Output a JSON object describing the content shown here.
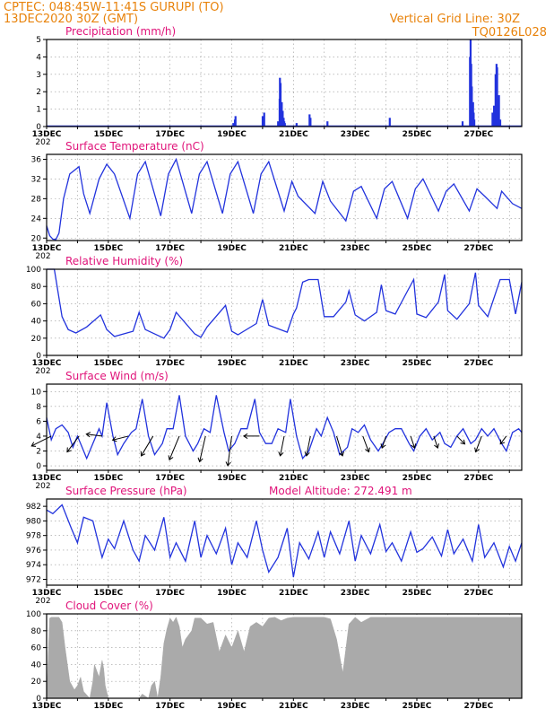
{
  "header": {
    "line1": "CPTEC:  048:45W-11:41S   GURUPI (TO)",
    "line2": "13DEC2020 30Z (GMT)",
    "grid_note": "Vertical Grid Line: 30Z",
    "code": "TQ0126L028"
  },
  "colors": {
    "header": "#e8820a",
    "title": "#e0147a",
    "series": "#2233dd",
    "cloud": "#aaaaaa",
    "arrow": "#000000"
  },
  "x_axis": {
    "labels": [
      "13DEC",
      "15DEC",
      "17DEC",
      "19DEC",
      "21DEC",
      "23DEC",
      "25DEC",
      "27DEC"
    ],
    "label_days": [
      0,
      2,
      4,
      6,
      8,
      10,
      12,
      14
    ],
    "year_stub": "202",
    "range_days": [
      0,
      15.4
    ]
  },
  "chart_data": [
    {
      "type": "bar",
      "title": "Precipitation (mm/h)",
      "ylim": [
        0,
        5
      ],
      "yticks": [
        0,
        1,
        2,
        3,
        4,
        5
      ],
      "x_days": [
        6.05,
        6.1,
        6.12,
        7.0,
        7.05,
        7.5,
        7.55,
        7.56,
        7.58,
        7.6,
        7.62,
        7.65,
        7.68,
        7.7,
        7.72,
        8.1,
        8.52,
        8.55,
        9.1,
        11.12,
        13.48,
        13.72,
        13.74,
        13.76,
        13.78,
        13.8,
        13.82,
        13.84,
        13.86,
        14.45,
        14.5,
        14.55,
        14.58,
        14.6,
        14.63,
        14.66,
        14.7
      ],
      "values": [
        0.2,
        0.4,
        0.6,
        0.6,
        0.8,
        0.3,
        1.6,
        2.8,
        2.5,
        1.2,
        1.4,
        0.9,
        0.5,
        0.3,
        0.2,
        0.2,
        0.7,
        0.5,
        0.3,
        0.5,
        0.3,
        4.0,
        5.0,
        3.6,
        2.3,
        1.2,
        1.4,
        0.8,
        0.4,
        0.8,
        1.2,
        3.0,
        3.6,
        3.4,
        1.6,
        1.8,
        0.4
      ]
    },
    {
      "type": "line",
      "title": "Surface Temperature (nC)",
      "ylim": [
        19.5,
        37
      ],
      "yticks": [
        20,
        24,
        28,
        32,
        36
      ],
      "x_days": [
        0,
        0.1,
        0.2,
        0.3,
        0.4,
        0.55,
        0.75,
        1.05,
        1.2,
        1.4,
        1.7,
        1.95,
        2.2,
        2.7,
        2.95,
        3.2,
        3.7,
        3.95,
        4.2,
        4.7,
        4.95,
        5.2,
        5.7,
        5.95,
        6.2,
        6.7,
        6.95,
        7.2,
        7.7,
        7.95,
        8.15,
        8.7,
        8.95,
        9.2,
        9.7,
        9.95,
        10.2,
        10.7,
        10.95,
        11.2,
        11.7,
        11.95,
        12.2,
        12.7,
        12.95,
        13.2,
        13.7,
        13.95,
        14.2,
        14.6,
        14.75,
        15.1,
        15.4
      ],
      "values": [
        22.5,
        20.5,
        19.8,
        19.7,
        21,
        28,
        33,
        34.5,
        29,
        25,
        32,
        35,
        33,
        24,
        33,
        35.5,
        24.5,
        33,
        36,
        25,
        33,
        35.5,
        25,
        33,
        35.5,
        25,
        33,
        35.5,
        25.5,
        31.5,
        28.5,
        25,
        31.5,
        27.5,
        23.5,
        29.5,
        30.5,
        24,
        30,
        31.5,
        24,
        30,
        32,
        25.5,
        29.5,
        31,
        25.5,
        30,
        28.5,
        26,
        29.5,
        27,
        26
      ]
    },
    {
      "type": "line",
      "title": "Relative Humidity (%)",
      "ylim": [
        0,
        100
      ],
      "yticks": [
        0,
        20,
        40,
        60,
        80,
        100
      ],
      "x_days": [
        0,
        0.25,
        0.5,
        0.7,
        0.95,
        1.3,
        1.75,
        1.95,
        2.2,
        2.8,
        3.0,
        3.2,
        3.8,
        4.0,
        4.2,
        4.8,
        5.0,
        5.2,
        5.8,
        6.0,
        6.2,
        6.8,
        7.0,
        7.2,
        7.8,
        8.0,
        8.1,
        8.3,
        8.5,
        8.7,
        8.8,
        9.0,
        9.3,
        9.7,
        9.8,
        10.0,
        10.3,
        10.7,
        10.85,
        11.0,
        11.3,
        11.7,
        11.9,
        12.0,
        12.3,
        12.7,
        12.9,
        13.0,
        13.3,
        13.7,
        13.9,
        14.0,
        14.3,
        14.7,
        14.85,
        15.0,
        15.2,
        15.4
      ],
      "values": [
        100,
        100,
        45,
        30,
        26,
        33,
        47,
        30,
        22,
        28,
        50,
        30,
        20,
        30,
        50,
        25,
        21,
        33,
        58,
        28,
        24,
        37,
        65,
        35,
        27,
        48,
        55,
        85,
        88,
        88,
        88,
        45,
        45,
        62,
        75,
        47,
        40,
        50,
        82,
        52,
        48,
        75,
        88,
        48,
        44,
        62,
        94,
        52,
        42,
        60,
        96,
        58,
        45,
        88,
        88,
        88,
        48,
        85
      ]
    },
    {
      "type": "line",
      "title": "Surface Wind (m/s)",
      "ylim": [
        -0.6,
        11
      ],
      "yticks": [
        0,
        2,
        4,
        6,
        8,
        10
      ],
      "x_days": [
        0,
        0.15,
        0.3,
        0.5,
        0.7,
        0.85,
        1.0,
        1.1,
        1.3,
        1.45,
        1.7,
        1.8,
        1.95,
        2.15,
        2.3,
        2.5,
        2.75,
        2.9,
        3.1,
        3.3,
        3.5,
        3.75,
        3.9,
        4.1,
        4.3,
        4.5,
        4.75,
        4.9,
        5.1,
        5.3,
        5.5,
        5.75,
        5.9,
        6.1,
        6.3,
        6.5,
        6.75,
        6.9,
        7.1,
        7.3,
        7.5,
        7.75,
        7.9,
        8.1,
        8.3,
        8.5,
        8.75,
        8.9,
        9.1,
        9.3,
        9.5,
        9.75,
        9.9,
        10.1,
        10.3,
        10.5,
        10.75,
        10.9,
        11.1,
        11.3,
        11.5,
        11.75,
        11.9,
        12.1,
        12.3,
        12.5,
        12.75,
        12.9,
        13.1,
        13.3,
        13.5,
        13.75,
        13.9,
        14.1,
        14.3,
        14.5,
        14.75,
        14.9,
        15.1,
        15.3,
        15.4
      ],
      "values": [
        6.5,
        3.5,
        5,
        5.5,
        4.5,
        2.5,
        4,
        3,
        1,
        2.5,
        5,
        4,
        8.5,
        4,
        1.5,
        3,
        4.5,
        5,
        9,
        4,
        1.5,
        3,
        5,
        5,
        9.5,
        4,
        2,
        3,
        5,
        4.5,
        9.5,
        4.5,
        2,
        3,
        5,
        5,
        9,
        4.5,
        3,
        3,
        5,
        4.5,
        9,
        4,
        1,
        2,
        5,
        4,
        6.5,
        4.5,
        1.5,
        2.5,
        5,
        4.5,
        5.5,
        3.5,
        2,
        3,
        4.5,
        5,
        5,
        3,
        2,
        4,
        5,
        3.5,
        4.5,
        3,
        2.5,
        4,
        5,
        3,
        3.5,
        5,
        4,
        5,
        3,
        2,
        4.5,
        5,
        4.5
      ]
    },
    {
      "type": "line",
      "title": "Surface Pressure (hPa)",
      "annotation": "Model Altitude: 272.491 m",
      "ylim": [
        971.2,
        983
      ],
      "yticks": [
        972,
        974,
        976,
        978,
        980,
        982
      ],
      "x_days": [
        0,
        0.2,
        0.5,
        0.8,
        1.0,
        1.2,
        1.5,
        1.8,
        2.0,
        2.2,
        2.5,
        2.8,
        3.0,
        3.2,
        3.5,
        3.8,
        4.0,
        4.2,
        4.5,
        4.8,
        5.0,
        5.2,
        5.5,
        5.8,
        6.0,
        6.2,
        6.5,
        6.8,
        7.0,
        7.2,
        7.5,
        7.8,
        8.0,
        8.2,
        8.5,
        8.8,
        9.0,
        9.2,
        9.5,
        9.8,
        10.0,
        10.2,
        10.5,
        10.8,
        11.0,
        11.2,
        11.5,
        11.8,
        12.0,
        12.2,
        12.5,
        12.8,
        13.0,
        13.2,
        13.5,
        13.8,
        14.0,
        14.2,
        14.5,
        14.8,
        15.0,
        15.2,
        15.4
      ],
      "values": [
        981.5,
        981,
        982.2,
        979,
        977,
        980.5,
        980,
        975,
        977.5,
        976.2,
        980,
        976,
        974.5,
        978,
        976,
        980.5,
        975,
        977,
        974.5,
        980,
        975,
        978,
        975.5,
        979,
        974,
        977,
        975,
        980,
        976,
        973,
        975,
        979,
        972.3,
        977,
        974.8,
        978.5,
        975,
        978.5,
        975.5,
        980,
        974.5,
        978,
        975.5,
        979.5,
        975.8,
        977,
        974.5,
        978.5,
        975.7,
        976.2,
        977.8,
        975.2,
        978.8,
        975.5,
        977.5,
        974.5,
        979.5,
        975,
        977,
        973.7,
        976.5,
        974.5,
        977
      ]
    },
    {
      "type": "area",
      "title": "Cloud Cover (%)",
      "ylim": [
        0,
        100
      ],
      "yticks": [
        0,
        20,
        40,
        60,
        80,
        100
      ],
      "x_days": [
        0,
        0.1,
        0.15,
        0.4,
        0.5,
        0.6,
        0.75,
        0.9,
        1.0,
        1.1,
        1.2,
        1.4,
        1.5,
        1.55,
        1.6,
        1.7,
        1.8,
        1.85,
        1.9,
        2.0,
        2.1,
        2.2,
        2.5,
        3.0,
        3.1,
        3.3,
        3.4,
        3.5,
        3.6,
        3.7,
        3.8,
        3.9,
        4.0,
        4.1,
        4.2,
        4.3,
        4.4,
        4.5,
        4.7,
        4.8,
        5.0,
        5.2,
        5.4,
        5.6,
        5.8,
        6.0,
        6.2,
        6.4,
        6.6,
        6.8,
        7.0,
        7.2,
        7.4,
        7.6,
        7.8,
        8.0,
        8.5,
        9.0,
        9.2,
        9.4,
        9.6,
        9.8,
        10.0,
        10.2,
        10.5,
        11.0,
        11.5,
        12.0,
        12.5,
        13.0,
        13.5,
        14.0,
        14.5,
        15.0,
        15.4
      ],
      "values": [
        0,
        95,
        96,
        96,
        90,
        60,
        20,
        10,
        15,
        25,
        8,
        0,
        20,
        40,
        35,
        25,
        45,
        35,
        15,
        0,
        0,
        0,
        0,
        0,
        5,
        0,
        15,
        20,
        0,
        25,
        65,
        82,
        95,
        90,
        96,
        85,
        60,
        70,
        80,
        95,
        95,
        88,
        90,
        55,
        75,
        60,
        80,
        55,
        85,
        90,
        85,
        95,
        96,
        92,
        95,
        96,
        96,
        96,
        94,
        70,
        30,
        88,
        96,
        90,
        96,
        96,
        96,
        96,
        96,
        96,
        96,
        96,
        96,
        96,
        96
      ]
    }
  ],
  "wind_vectors": {
    "x_days": [
      0.15,
      1.05,
      1.8,
      2.65,
      3.45,
      4.3,
      5.15,
      6.0,
      6.9,
      7.7,
      8.55,
      9.4,
      10.25,
      11.0,
      11.8,
      12.55,
      13.3,
      14.1,
      14.9
    ],
    "u": [
      -1.0,
      -0.6,
      -0.8,
      -0.8,
      -0.6,
      -0.5,
      -0.3,
      -0.2,
      -0.8,
      -0.2,
      -0.2,
      0.3,
      0.3,
      -0.2,
      0.2,
      0.2,
      0.4,
      -0.3,
      -0.3
    ],
    "v": [
      -0.5,
      -0.8,
      0.1,
      -0.2,
      -1.0,
      -1.2,
      -1.3,
      -1.5,
      0.0,
      -1.0,
      -1.0,
      -1.0,
      -0.8,
      -0.6,
      -0.6,
      -0.6,
      -0.4,
      -0.8,
      -0.4
    ]
  }
}
